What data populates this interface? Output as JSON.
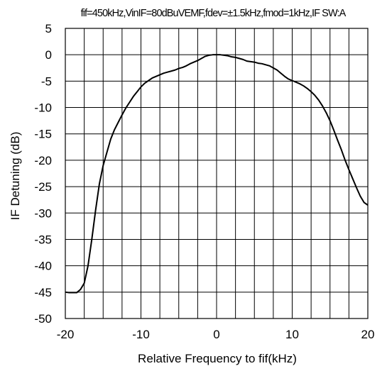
{
  "chart_data": {
    "type": "line",
    "title": "fif=450kHz,VinIF=80dBuVEMF,fdev=±1.5kHz,fmod=1kHz,IF SW:A",
    "xlabel": "Relative Frequency to fif(kHz)",
    "ylabel": "IF Detuning (dB)",
    "xlim": [
      -20,
      20
    ],
    "ylim": [
      -50,
      5
    ],
    "xticks": [
      -20,
      -10,
      0,
      10,
      20
    ],
    "xtick_labels": [
      "-20",
      "-10",
      "0",
      "10",
      "20"
    ],
    "yticks": [
      5,
      0,
      -5,
      -10,
      -15,
      -20,
      -25,
      -30,
      -35,
      -40,
      -45,
      -50
    ],
    "ytick_labels": [
      "5",
      "0",
      "-5",
      "-10",
      "-15",
      "-20",
      "-25",
      "-30",
      "-35",
      "-40",
      "-45",
      "-50"
    ],
    "x_grid_step": 2.5,
    "grid": true,
    "line_color": "#000000",
    "series": [
      {
        "x": [
          -20,
          -19.5,
          -19,
          -18.5,
          -18,
          -17.5,
          -17,
          -16.5,
          -16,
          -15.5,
          -15,
          -14.5,
          -14,
          -13.5,
          -13,
          -12.5,
          -12,
          -11.5,
          -11,
          -10.5,
          -10,
          -9.5,
          -9,
          -8.5,
          -8,
          -7.5,
          -7,
          -6.5,
          -6,
          -5.5,
          -5,
          -4.5,
          -4,
          -3.5,
          -3,
          -2.5,
          -2,
          -1.5,
          -1,
          -0.5,
          0,
          0.5,
          1,
          1.5,
          2,
          2.5,
          3,
          3.5,
          4,
          4.5,
          5,
          5.5,
          6,
          6.5,
          7,
          7.5,
          8,
          8.5,
          9,
          9.5,
          10,
          10.5,
          11,
          11.5,
          12,
          12.5,
          13,
          13.5,
          14,
          14.5,
          15,
          15.5,
          16,
          16.5,
          17,
          17.5,
          18,
          18.5,
          19,
          19.5,
          20
        ],
        "y": [
          -45,
          -45.1,
          -45.1,
          -45.1,
          -44.5,
          -43.3,
          -40,
          -35,
          -29.5,
          -24.5,
          -21,
          -18.5,
          -16,
          -14.2,
          -12.8,
          -11.4,
          -10.1,
          -9,
          -7.9,
          -7,
          -6.1,
          -5.4,
          -4.9,
          -4.4,
          -4.1,
          -3.8,
          -3.5,
          -3.3,
          -3.1,
          -2.9,
          -2.6,
          -2.4,
          -2.1,
          -1.7,
          -1.4,
          -1.1,
          -0.7,
          -0.3,
          -0.1,
          0,
          0,
          0,
          -0.1,
          -0.2,
          -0.4,
          -0.5,
          -0.7,
          -0.9,
          -1.2,
          -1.3,
          -1.4,
          -1.6,
          -1.7,
          -1.9,
          -2.1,
          -2.5,
          -2.9,
          -3.5,
          -4.1,
          -4.6,
          -4.9,
          -5.2,
          -5.5,
          -5.9,
          -6.4,
          -7,
          -7.7,
          -8.6,
          -9.7,
          -11,
          -12.5,
          -14.3,
          -16.2,
          -18,
          -20,
          -21.8,
          -23.5,
          -25.2,
          -26.8,
          -28,
          -28.5
        ]
      }
    ]
  }
}
